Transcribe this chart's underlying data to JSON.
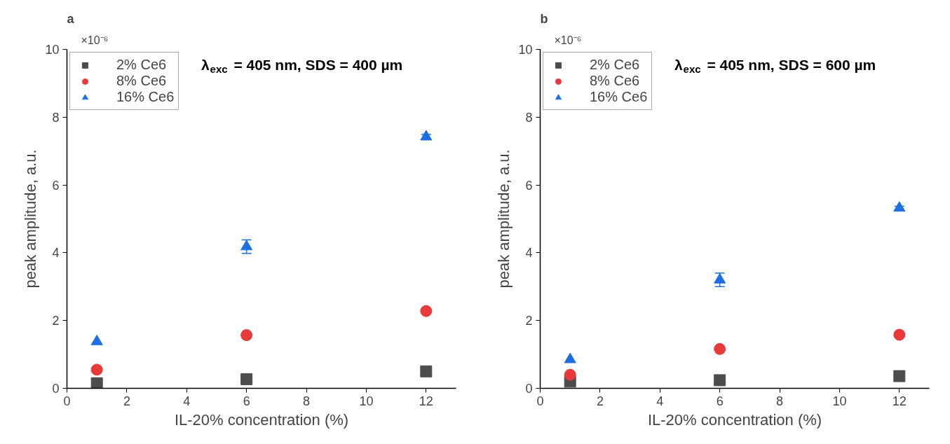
{
  "chart_data": [
    {
      "type": "scatter",
      "title": "a",
      "xlabel": "IL-20% concentration (%)",
      "ylabel": "peak amplitude, a.u.",
      "annotations": [
        "×10⁻⁶",
        "λ$_{exc}$ = 405 nm, SDS = 400 µm"
      ],
      "x": [
        1,
        6,
        12
      ],
      "xlim": [
        0,
        13
      ],
      "xticks": [
        0,
        2,
        4,
        6,
        8,
        10,
        12
      ],
      "ylim": [
        0,
        10
      ],
      "yticks": [
        0,
        2,
        4,
        6,
        8,
        10
      ],
      "grid": false,
      "legend": "top left",
      "series": [
        {
          "name": "2% Ce6",
          "color": "#4d4d4d",
          "marker": "square",
          "values": [
            0.15,
            0.27,
            0.5
          ]
        },
        {
          "name": "8% Ce6",
          "color": "#e8393b",
          "marker": "circle",
          "values": [
            0.55,
            1.57,
            2.28
          ]
        },
        {
          "name": "16% Ce6",
          "color": "#1f6fe0",
          "marker": "triangle",
          "values": [
            1.38,
            4.18,
            7.42
          ],
          "errors": [
            null,
            0.2,
            0.07
          ]
        }
      ]
    },
    {
      "type": "scatter",
      "title": "b",
      "xlabel": "IL-20% concentration (%)",
      "ylabel": "peak amplitude, a.u.",
      "annotations": [
        "×10⁻⁶",
        "λ$_{exc}$ = 405 nm, SDS = 600 µm"
      ],
      "x": [
        1,
        6,
        12
      ],
      "xlim": [
        0,
        13
      ],
      "xticks": [
        0,
        2,
        4,
        6,
        8,
        10,
        12
      ],
      "ylim": [
        0,
        10
      ],
      "yticks": [
        0,
        2,
        4,
        6,
        8,
        10
      ],
      "grid": false,
      "legend": "top left",
      "series": [
        {
          "name": "2% Ce6",
          "color": "#4d4d4d",
          "marker": "square",
          "values": [
            0.2,
            0.24,
            0.36
          ]
        },
        {
          "name": "8% Ce6",
          "color": "#e8393b",
          "marker": "circle",
          "values": [
            0.4,
            1.16,
            1.58
          ]
        },
        {
          "name": "16% Ce6",
          "color": "#1f6fe0",
          "marker": "triangle",
          "values": [
            0.85,
            3.2,
            5.32
          ],
          "errors": [
            null,
            0.2,
            0.05
          ]
        }
      ]
    }
  ]
}
